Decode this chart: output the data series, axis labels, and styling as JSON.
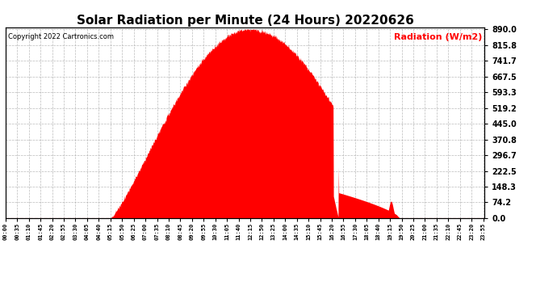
{
  "title": "Solar Radiation per Minute (24 Hours) 20220626",
  "copyright_text": "Copyright 2022 Cartronics.com",
  "ylabel_text": "Radiation (W/m2)",
  "fill_color": "#FF0000",
  "line_color": "#FF0000",
  "background_color": "#FFFFFF",
  "grid_color": "#AAAAAA",
  "title_fontsize": 11,
  "ylabel_color": "#FF0000",
  "ytick_values": [
    0.0,
    74.2,
    148.3,
    222.5,
    296.7,
    370.8,
    445.0,
    519.2,
    593.3,
    667.5,
    741.7,
    815.8,
    890.0
  ],
  "ymax": 890.0,
  "ymin": 0.0,
  "dashed_line_color": "#FF0000",
  "num_minutes": 1440,
  "sunrise_minute": 315,
  "sunset_minute": 1185,
  "peak_minute": 735,
  "peak_value": 890.0,
  "tick_interval": 35
}
